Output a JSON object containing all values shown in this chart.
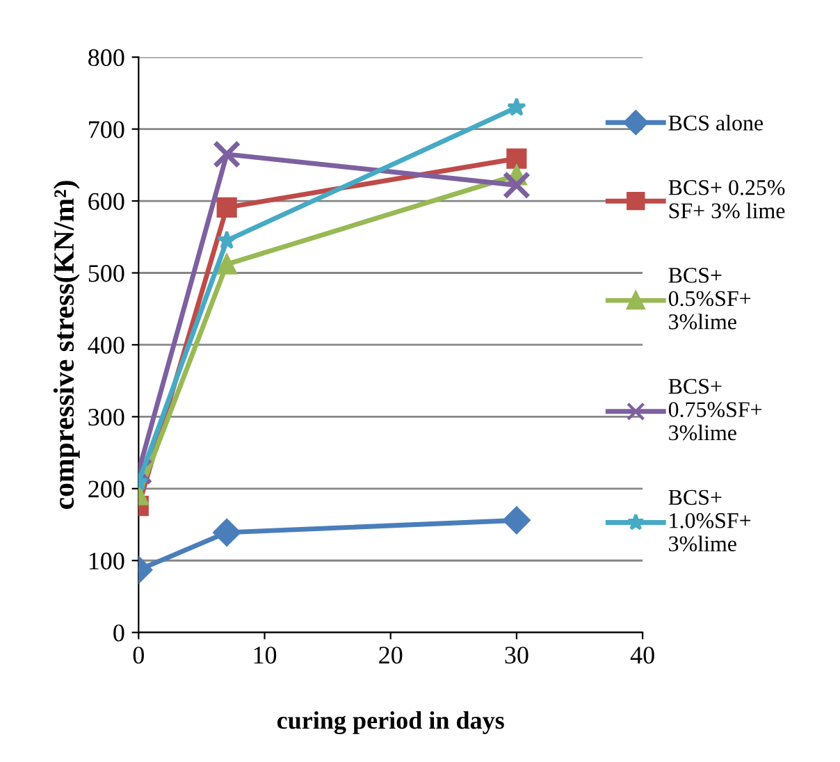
{
  "chart_data": {
    "type": "line",
    "xlabel": "curing period in days",
    "ylabel": "compressive stress(KN/m²)",
    "xlim": [
      0,
      40
    ],
    "xticks": [
      0,
      10,
      20,
      30,
      40
    ],
    "ylim": [
      0,
      800
    ],
    "yticks": [
      0,
      100,
      200,
      300,
      400,
      500,
      600,
      700,
      800
    ],
    "grid": "y",
    "legend": "right",
    "x": [
      0,
      7,
      30
    ],
    "series": [
      {
        "name": "BCS alone",
        "color": "#4a7ebb",
        "marker": "diamond",
        "values": [
          87,
          139,
          156
        ]
      },
      {
        "name": "BCS+ 0.25%\nSF+ 3% lime",
        "color": "#be4b48",
        "marker": "square",
        "values": [
          176,
          591,
          659
        ]
      },
      {
        "name": "BCS+\n0.5%SF+\n3%lime",
        "color": "#98b954",
        "marker": "triangle",
        "values": [
          191,
          512,
          636
        ]
      },
      {
        "name": "BCS+\n0.75%SF+\n3%lime",
        "color": "#7d60a0",
        "marker": "cross",
        "values": [
          224,
          665,
          622
        ]
      },
      {
        "name": "BCS+\n1.0%SF+\n3%lime",
        "color": "#46aac5",
        "marker": "star",
        "values": [
          209,
          545,
          730
        ]
      }
    ]
  }
}
